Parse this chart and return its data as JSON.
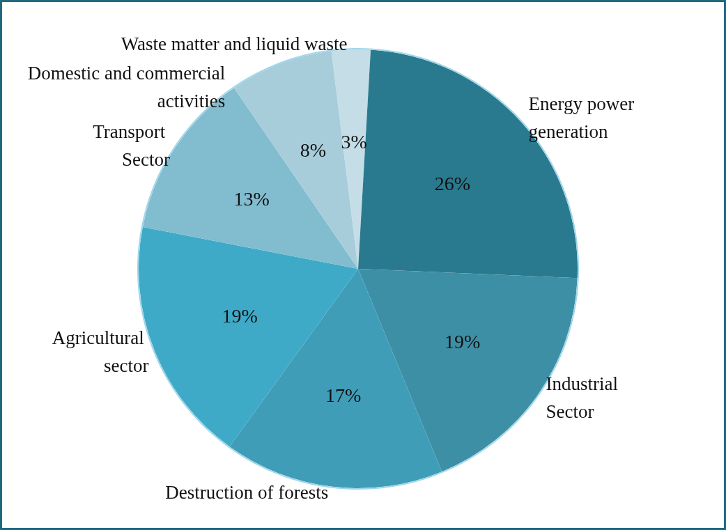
{
  "chart_data": {
    "type": "pie",
    "categories": [
      "Waste matter and liquid waste",
      "Energy power generation",
      "Industrial Sector",
      "Destruction of forests",
      "Agricultural sector",
      "Transport Sector",
      "Domestic and commercial activities"
    ],
    "values": [
      3,
      26,
      19,
      17,
      19,
      13,
      8
    ],
    "colors": [
      "#c5dde6",
      "#2a7a8f",
      "#3d8fa5",
      "#3f9db8",
      "#3eaac8",
      "#82bccf",
      "#a7cddb"
    ],
    "value_labels": [
      "3%",
      "26%",
      "19%",
      "17%",
      "19%",
      "13%",
      "8%"
    ],
    "legend": false
  }
}
